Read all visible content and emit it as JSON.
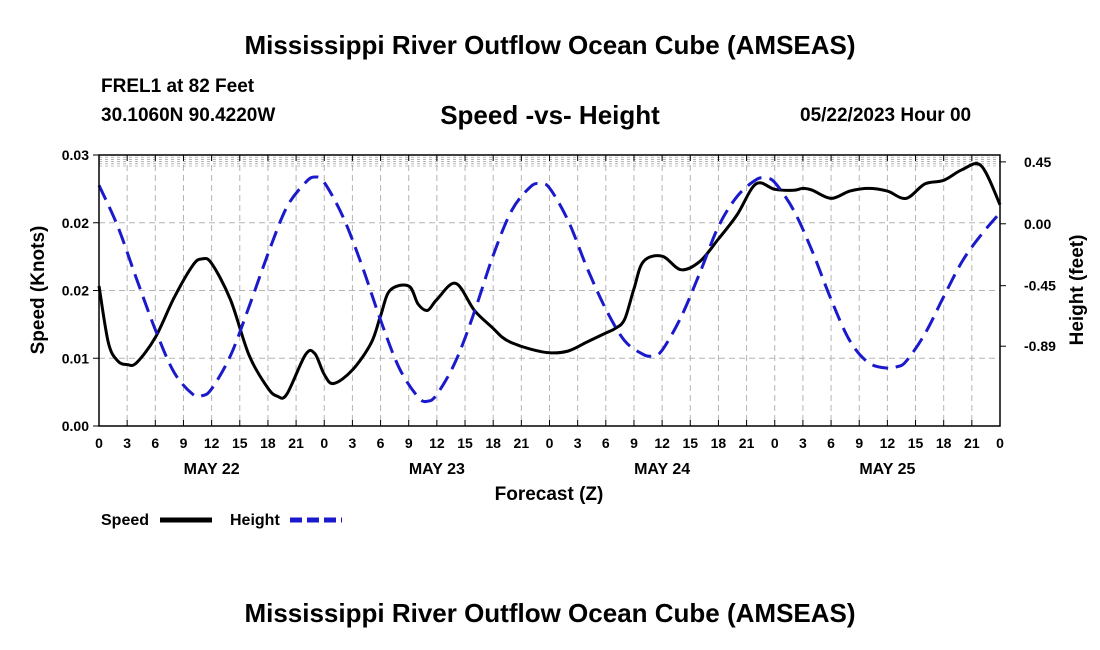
{
  "header": {
    "title": "Mississippi River Outflow Ocean Cube (AMSEAS)",
    "station": "FREL1 at 82 Feet",
    "coords": "30.1060N  90.4220W",
    "subtitle": "Speed -vs- Height",
    "date": "05/22/2023 Hour 00"
  },
  "footer": {
    "title": "Mississippi River Outflow Ocean Cube (AMSEAS)"
  },
  "colors": {
    "speed": "#000000",
    "height": "#1a1acc",
    "grid": "#b4b4b4"
  },
  "chart_data": {
    "type": "line",
    "title": "Speed -vs- Height",
    "xlabel": "Forecast (Z)",
    "ylabel": "Speed (Knots)",
    "y2label": "Height (feet)",
    "xlim": [
      0,
      96
    ],
    "ylim": [
      0,
      0.03
    ],
    "y2lim": [
      -1.47,
      0.5
    ],
    "x_ticks": [
      0,
      3,
      6,
      9,
      12,
      15,
      18,
      21,
      24,
      27,
      30,
      33,
      36,
      39,
      42,
      45,
      48,
      51,
      54,
      57,
      60,
      63,
      66,
      69,
      72,
      75,
      78,
      81,
      84,
      87,
      90,
      93,
      96
    ],
    "x_tick_labels": [
      "0",
      "3",
      "6",
      "9",
      "12",
      "15",
      "18",
      "21",
      "0",
      "3",
      "6",
      "9",
      "12",
      "15",
      "18",
      "21",
      "0",
      "3",
      "6",
      "9",
      "12",
      "15",
      "18",
      "21",
      "0",
      "3",
      "6",
      "9",
      "12",
      "15",
      "18",
      "21",
      "0"
    ],
    "day_labels": [
      {
        "x": 12,
        "label": "MAY 22"
      },
      {
        "x": 36,
        "label": "MAY 23"
      },
      {
        "x": 60,
        "label": "MAY 24"
      },
      {
        "x": 84,
        "label": "MAY 25"
      }
    ],
    "y_ticks": [
      0,
      0.0075,
      0.015,
      0.0225,
      0.03
    ],
    "y_tick_labels": [
      "0.00",
      "0.01",
      "0.02",
      "0.02",
      "0.03"
    ],
    "y2_ticks": [
      0.45,
      0.0,
      -0.45,
      -0.89
    ],
    "y2_tick_labels": [
      "0.45",
      "0.00",
      "-0.45",
      "-0.89"
    ],
    "legend": [
      {
        "name": "Speed",
        "style": "solid"
      },
      {
        "name": "Height",
        "style": "dashed"
      }
    ],
    "series": [
      {
        "name": "Speed",
        "axis": "left",
        "x": [
          0,
          1,
          2,
          3,
          4,
          6,
          8,
          10,
          11,
          12,
          14,
          16,
          18,
          19,
          20,
          22,
          23,
          24,
          25,
          27,
          29,
          30,
          31,
          33,
          34,
          35,
          36,
          38,
          40,
          42,
          43,
          44,
          46,
          48,
          50,
          52,
          54,
          55,
          56,
          57,
          58,
          60,
          62,
          64,
          66,
          68,
          70,
          72,
          74,
          75,
          76,
          78,
          80,
          82,
          84,
          86,
          88,
          90,
          92,
          94,
          96
        ],
        "y": [
          0.0155,
          0.0092,
          0.0072,
          0.0068,
          0.007,
          0.0098,
          0.0142,
          0.0178,
          0.0185,
          0.018,
          0.014,
          0.0078,
          0.0042,
          0.0033,
          0.0035,
          0.0079,
          0.008,
          0.0057,
          0.0047,
          0.0062,
          0.0092,
          0.0122,
          0.015,
          0.0155,
          0.0135,
          0.0128,
          0.014,
          0.0158,
          0.0128,
          0.0108,
          0.0098,
          0.0092,
          0.0085,
          0.0081,
          0.0083,
          0.0093,
          0.0103,
          0.0108,
          0.0118,
          0.0152,
          0.0182,
          0.0188,
          0.0173,
          0.0182,
          0.0207,
          0.0234,
          0.0268,
          0.0262,
          0.0261,
          0.0263,
          0.0261,
          0.0252,
          0.026,
          0.0263,
          0.026,
          0.0252,
          0.0268,
          0.0272,
          0.0284,
          0.0288,
          0.0245
        ]
      },
      {
        "name": "Height",
        "axis": "right",
        "x": [
          0,
          2,
          4,
          6,
          8,
          10,
          11,
          12,
          14,
          16,
          18,
          20,
          22,
          23,
          24,
          26,
          28,
          30,
          32,
          34,
          35,
          36,
          38,
          40,
          42,
          44,
          46,
          47,
          48,
          50,
          52,
          54,
          56,
          58,
          59,
          60,
          62,
          64,
          66,
          68,
          70,
          71,
          72,
          74,
          76,
          78,
          80,
          82,
          84,
          85,
          86,
          88,
          90,
          92,
          94,
          96
        ],
        "y": [
          0.28,
          -0.02,
          -0.4,
          -0.77,
          -1.08,
          -1.24,
          -1.25,
          -1.2,
          -0.96,
          -0.6,
          -0.22,
          0.12,
          0.3,
          0.34,
          0.3,
          0.05,
          -0.3,
          -0.7,
          -1.05,
          -1.26,
          -1.29,
          -1.24,
          -1.0,
          -0.64,
          -0.23,
          0.1,
          0.27,
          0.29,
          0.26,
          0.02,
          -0.32,
          -0.62,
          -0.85,
          -0.95,
          -0.96,
          -0.92,
          -0.68,
          -0.36,
          -0.02,
          0.2,
          0.32,
          0.33,
          0.3,
          0.1,
          -0.2,
          -0.55,
          -0.85,
          -1.01,
          -1.05,
          -1.04,
          -1.0,
          -0.8,
          -0.53,
          -0.27,
          -0.08,
          0.08
        ]
      }
    ]
  }
}
